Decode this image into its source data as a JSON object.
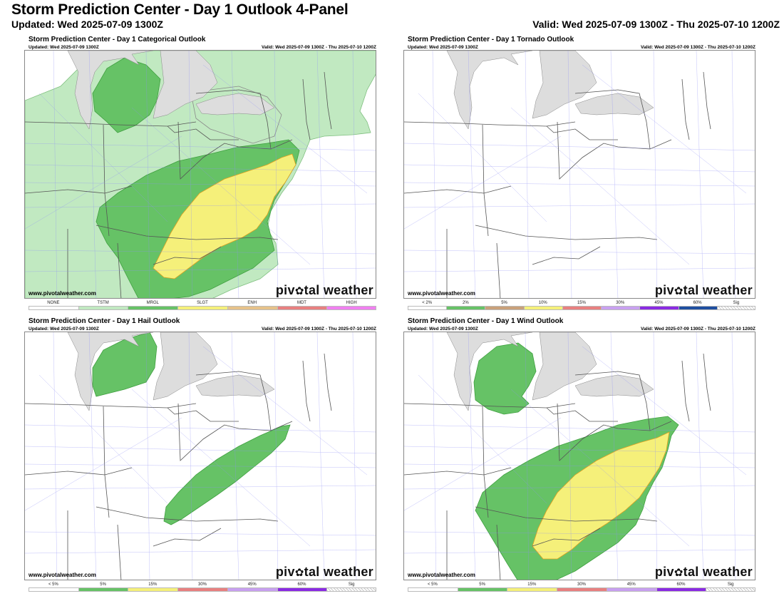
{
  "header": {
    "title": "Storm Prediction Center - Day 1 Outlook 4-Panel",
    "updated": "Updated: Wed 2025-07-09 1300Z",
    "valid": "Valid: Wed 2025-07-09 1300Z - Thu 2025-07-10 1200Z"
  },
  "panel_common": {
    "updated": "Updated: Wed 2025-07-09 1300Z",
    "valid": "Valid: Wed 2025-07-09 1300Z - Thu 2025-07-10 1200Z",
    "site": "www.pivotalweather.com",
    "brand_left": "piv",
    "brand_right": "tal weather"
  },
  "colors": {
    "tstm": "#c1e9c1",
    "mrgl": "#66c266",
    "slgt": "#f5f07a",
    "enh": "#e6c28a",
    "mdt": "#e88080",
    "high": "#f080f0",
    "lake": "#dddddd",
    "roads": "#8f8ff5"
  },
  "panels": [
    {
      "title": "Storm Prediction Center - Day 1 Categorical Outlook",
      "legend": [
        {
          "label": "NONE",
          "color": "#ffffff"
        },
        {
          "label": "TSTM",
          "color": "#c1e9c1"
        },
        {
          "label": "MRGL",
          "color": "#66c266"
        },
        {
          "label": "SLGT",
          "color": "#f5f07a"
        },
        {
          "label": "ENH",
          "color": "#e6c28a"
        },
        {
          "label": "MDT",
          "color": "#e88080"
        },
        {
          "label": "HIGH",
          "color": "#f080f0"
        }
      ]
    },
    {
      "title": "Storm Prediction Center - Day 1 Tornado Outlook",
      "legend": [
        {
          "label": "< 2%",
          "color": "#ffffff"
        },
        {
          "label": "2%",
          "color": "#66c266"
        },
        {
          "label": "5%",
          "color": "#c8a07a"
        },
        {
          "label": "10%",
          "color": "#f5f07a"
        },
        {
          "label": "15%",
          "color": "#e88080"
        },
        {
          "label": "30%",
          "color": "#c8a0f0"
        },
        {
          "label": "45%",
          "color": "#8a2be2"
        },
        {
          "label": "60%",
          "color": "#1f4f9f"
        },
        {
          "label": "Sig",
          "color": "hatch"
        }
      ]
    },
    {
      "title": "Storm Prediction Center - Day 1 Hail Outlook",
      "legend": [
        {
          "label": "< 5%",
          "color": "#ffffff"
        },
        {
          "label": "5%",
          "color": "#66c266"
        },
        {
          "label": "15%",
          "color": "#f5f07a"
        },
        {
          "label": "30%",
          "color": "#e88080"
        },
        {
          "label": "45%",
          "color": "#c8a0f0"
        },
        {
          "label": "60%",
          "color": "#8a2be2"
        },
        {
          "label": "Sig",
          "color": "hatch"
        }
      ]
    },
    {
      "title": "Storm Prediction Center - Day 1 Wind Outlook",
      "legend": [
        {
          "label": "< 5%",
          "color": "#ffffff"
        },
        {
          "label": "5%",
          "color": "#66c266"
        },
        {
          "label": "15%",
          "color": "#f5f07a"
        },
        {
          "label": "30%",
          "color": "#e88080"
        },
        {
          "label": "45%",
          "color": "#c8a0f0"
        },
        {
          "label": "60%",
          "color": "#8a2be2"
        },
        {
          "label": "Sig",
          "color": "hatch"
        }
      ]
    }
  ]
}
